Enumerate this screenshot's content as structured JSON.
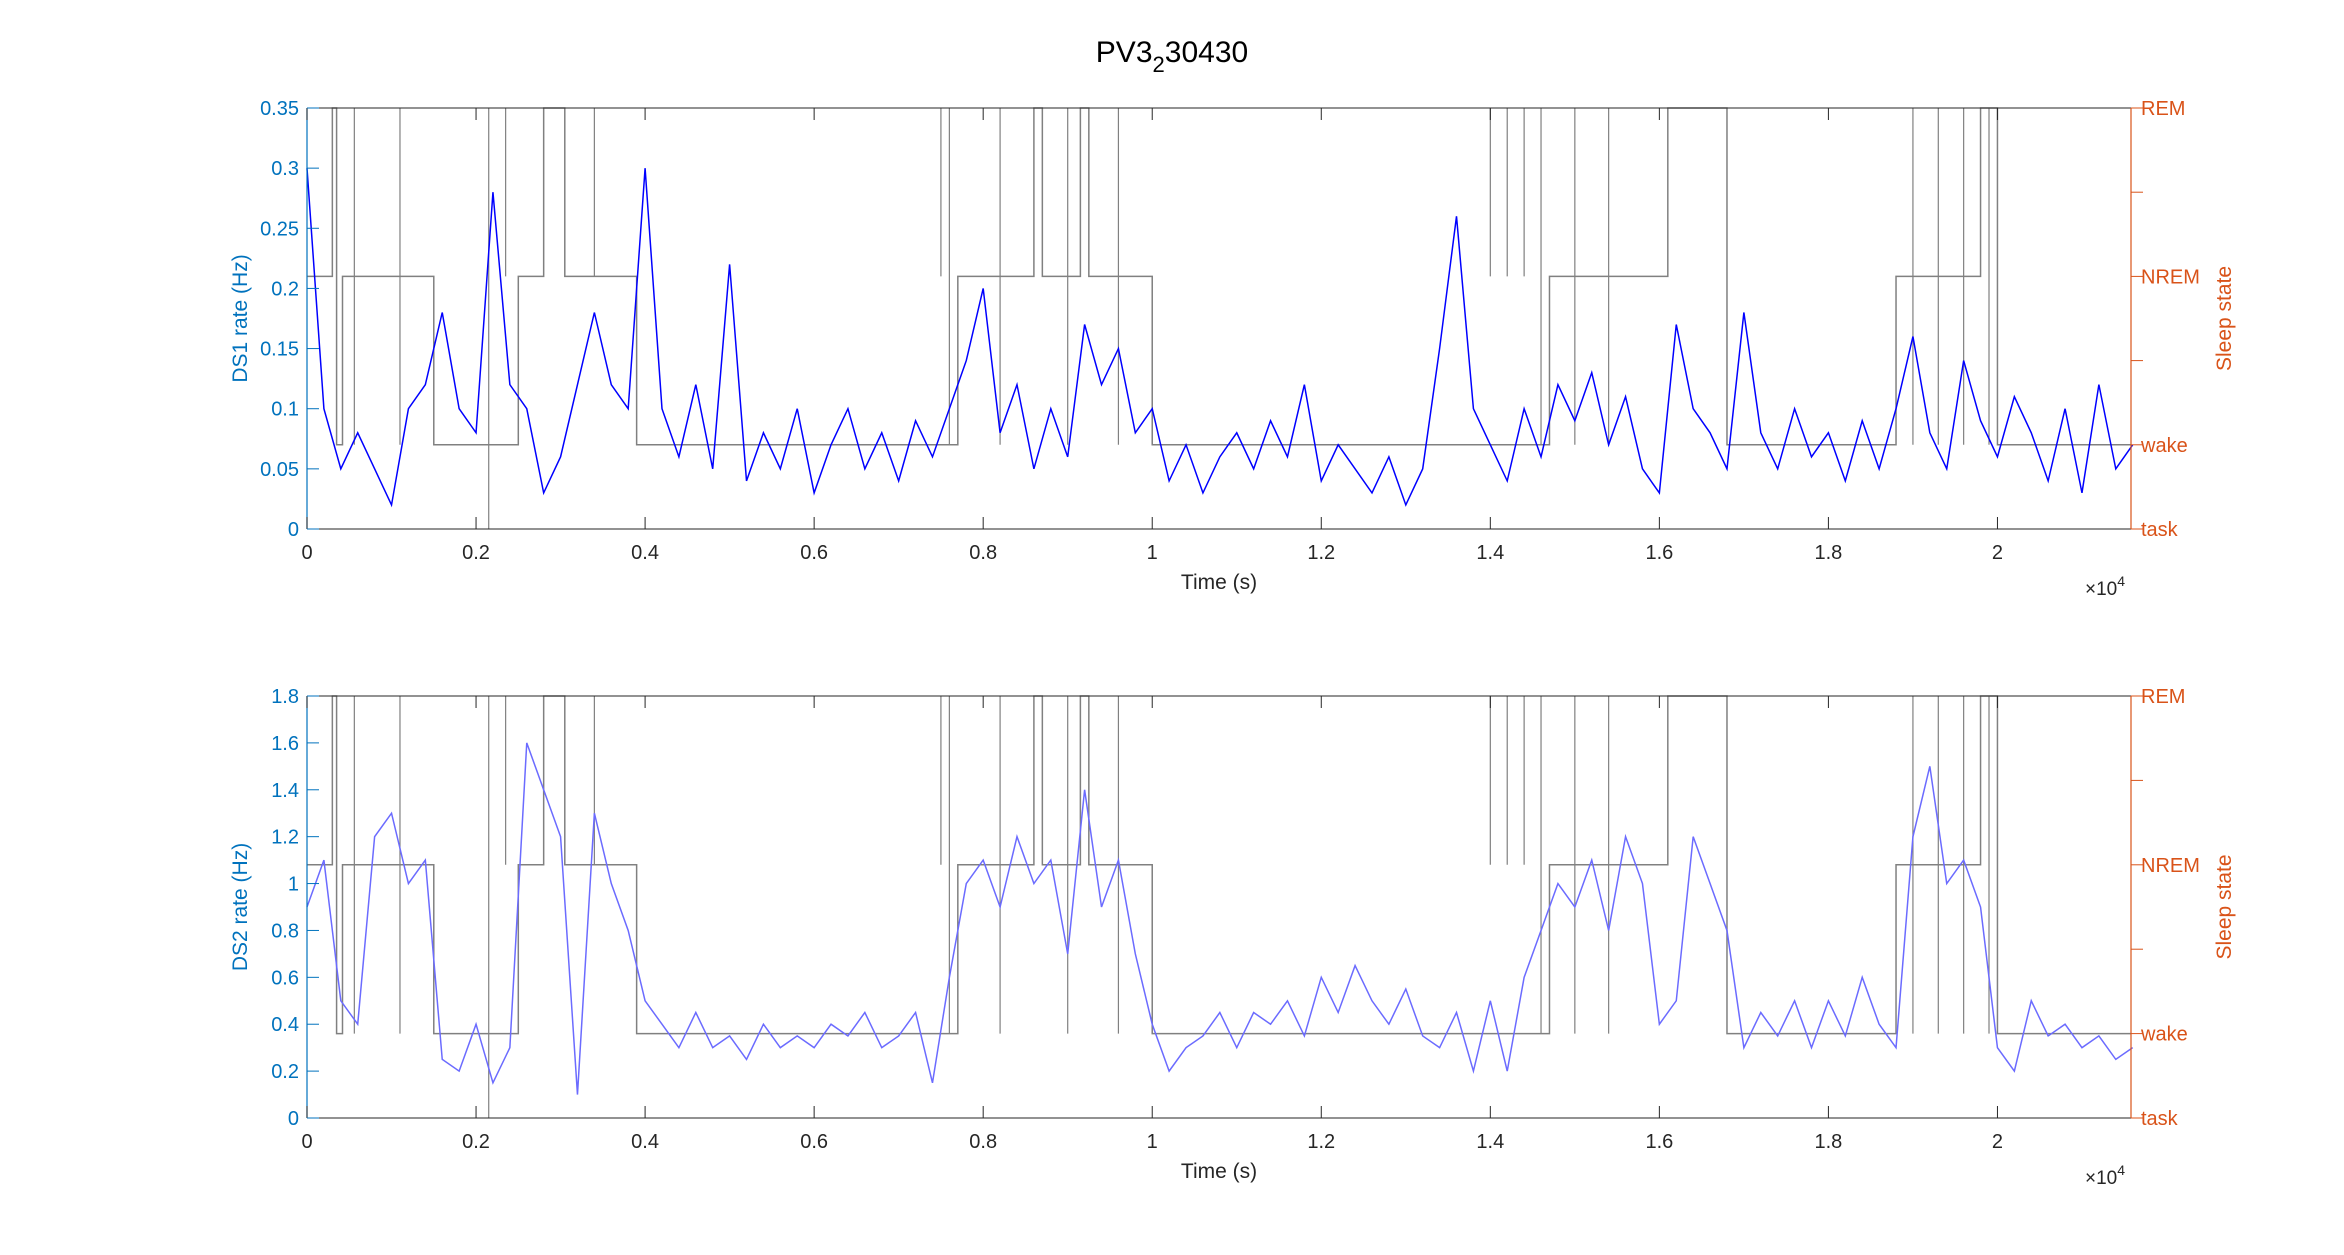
{
  "title": {
    "base": "PV3",
    "sub": "2",
    "rest": "30430"
  },
  "colors": {
    "left_axis": "#0072BD",
    "right_axis": "#D95319",
    "ds1_line": "#0000FF",
    "ds2_line": "#6B6BFF",
    "hypnogram": "#808080",
    "axis": "#262626"
  },
  "chart_data": [
    {
      "type": "line",
      "title": "PV3_2 30430",
      "xlabel": "Time (s)",
      "x_exponent_label": "×10",
      "x_exponent": "4",
      "ylabel": "DS1 rate (Hz)",
      "ylabel_right": "Sleep state",
      "xlim": [
        0,
        21580
      ],
      "ylim": [
        0,
        0.35
      ],
      "xticks": [
        0,
        2000,
        4000,
        6000,
        8000,
        10000,
        12000,
        14000,
        16000,
        18000,
        20000
      ],
      "xtick_labels": [
        "0",
        "0.2",
        "0.4",
        "0.6",
        "0.8",
        "1",
        "1.2",
        "1.4",
        "1.6",
        "1.8",
        "2"
      ],
      "yticks": [
        0,
        0.05,
        0.1,
        0.15,
        0.2,
        0.25,
        0.3,
        0.35
      ],
      "ytick_labels": [
        "0",
        "0.05",
        "0.1",
        "0.15",
        "0.2",
        "0.25",
        "0.3",
        "0.35"
      ],
      "right_ticks": [
        0,
        1,
        2,
        3,
        4,
        5
      ],
      "right_tick_labels": [
        "task",
        "wake",
        "",
        "NREM",
        "",
        "REM"
      ],
      "x_step": 200,
      "series": [
        {
          "name": "DS1 rate",
          "values": [
            0.3,
            0.1,
            0.05,
            0.08,
            0.05,
            0.02,
            0.1,
            0.12,
            0.18,
            0.1,
            0.08,
            0.28,
            0.12,
            0.1,
            0.03,
            0.06,
            0.12,
            0.18,
            0.12,
            0.1,
            0.3,
            0.1,
            0.06,
            0.12,
            0.05,
            0.22,
            0.04,
            0.08,
            0.05,
            0.1,
            0.03,
            0.07,
            0.1,
            0.05,
            0.08,
            0.04,
            0.09,
            0.06,
            0.1,
            0.14,
            0.2,
            0.08,
            0.12,
            0.05,
            0.1,
            0.06,
            0.17,
            0.12,
            0.15,
            0.08,
            0.1,
            0.04,
            0.07,
            0.03,
            0.06,
            0.08,
            0.05,
            0.09,
            0.06,
            0.12,
            0.04,
            0.07,
            0.05,
            0.03,
            0.06,
            0.02,
            0.05,
            0.15,
            0.26,
            0.1,
            0.07,
            0.04,
            0.1,
            0.06,
            0.12,
            0.09,
            0.13,
            0.07,
            0.11,
            0.05,
            0.03,
            0.17,
            0.1,
            0.08,
            0.05,
            0.18,
            0.08,
            0.05,
            0.1,
            0.06,
            0.08,
            0.04,
            0.09,
            0.05,
            0.1,
            0.16,
            0.08,
            0.05,
            0.14,
            0.09,
            0.06,
            0.11,
            0.08,
            0.04,
            0.1,
            0.03,
            0.12,
            0.05,
            0.07
          ]
        }
      ]
    },
    {
      "type": "line",
      "xlabel": "Time (s)",
      "x_exponent_label": "×10",
      "x_exponent": "4",
      "ylabel": "DS2 rate (Hz)",
      "ylabel_right": "Sleep state",
      "xlim": [
        0,
        21580
      ],
      "ylim": [
        0,
        1.8
      ],
      "xticks": [
        0,
        2000,
        4000,
        6000,
        8000,
        10000,
        12000,
        14000,
        16000,
        18000,
        20000
      ],
      "xtick_labels": [
        "0",
        "0.2",
        "0.4",
        "0.6",
        "0.8",
        "1",
        "1.2",
        "1.4",
        "1.6",
        "1.8",
        "2"
      ],
      "yticks": [
        0,
        0.2,
        0.4,
        0.6,
        0.8,
        1,
        1.2,
        1.4,
        1.6,
        1.8
      ],
      "ytick_labels": [
        "0",
        "0.2",
        "0.4",
        "0.6",
        "0.8",
        "1",
        "1.2",
        "1.4",
        "1.6",
        "1.8"
      ],
      "right_ticks": [
        0,
        1,
        2,
        3,
        4,
        5
      ],
      "right_tick_labels": [
        "task",
        "wake",
        "",
        "NREM",
        "",
        "REM"
      ],
      "x_step": 200,
      "series": [
        {
          "name": "DS2 rate",
          "values": [
            0.9,
            1.1,
            0.5,
            0.4,
            1.2,
            1.3,
            1.0,
            1.1,
            0.25,
            0.2,
            0.4,
            0.15,
            0.3,
            1.6,
            1.4,
            1.2,
            0.1,
            1.3,
            1.0,
            0.8,
            0.5,
            0.4,
            0.3,
            0.45,
            0.3,
            0.35,
            0.25,
            0.4,
            0.3,
            0.35,
            0.3,
            0.4,
            0.35,
            0.45,
            0.3,
            0.35,
            0.45,
            0.15,
            0.6,
            1.0,
            1.1,
            0.9,
            1.2,
            1.0,
            1.1,
            0.7,
            1.4,
            0.9,
            1.1,
            0.7,
            0.4,
            0.2,
            0.3,
            0.35,
            0.45,
            0.3,
            0.45,
            0.4,
            0.5,
            0.35,
            0.6,
            0.45,
            0.65,
            0.5,
            0.4,
            0.55,
            0.35,
            0.3,
            0.45,
            0.2,
            0.5,
            0.2,
            0.6,
            0.8,
            1.0,
            0.9,
            1.1,
            0.8,
            1.2,
            1.0,
            0.4,
            0.5,
            1.2,
            1.0,
            0.8,
            0.3,
            0.45,
            0.35,
            0.5,
            0.3,
            0.5,
            0.35,
            0.6,
            0.4,
            0.3,
            1.2,
            1.5,
            1.0,
            1.1,
            0.9,
            0.3,
            0.2,
            0.5,
            0.35,
            0.4,
            0.3,
            0.35,
            0.25,
            0.3
          ]
        }
      ]
    }
  ],
  "hypnogram": {
    "name": "Sleep state",
    "segments": [
      [
        0,
        300,
        3
      ],
      [
        300,
        350,
        5
      ],
      [
        350,
        420,
        1
      ],
      [
        420,
        1500,
        3
      ],
      [
        1500,
        2500,
        1
      ],
      [
        2500,
        2800,
        3
      ],
      [
        2800,
        3050,
        5
      ],
      [
        3050,
        3900,
        3
      ],
      [
        3900,
        7700,
        1
      ],
      [
        7700,
        8600,
        3
      ],
      [
        8600,
        8700,
        5
      ],
      [
        8700,
        9150,
        3
      ],
      [
        9150,
        9250,
        5
      ],
      [
        9250,
        10000,
        3
      ],
      [
        10000,
        13300,
        1
      ],
      [
        13300,
        14700,
        1
      ],
      [
        14700,
        16100,
        3
      ],
      [
        16100,
        16800,
        5
      ],
      [
        16800,
        18800,
        1
      ],
      [
        18800,
        19800,
        3
      ],
      [
        19800,
        20000,
        5
      ],
      [
        20000,
        21580,
        1
      ]
    ],
    "flickers": [
      [
        400,
        5
      ],
      [
        560,
        1
      ],
      [
        1100,
        1
      ],
      [
        2150,
        0
      ],
      [
        2350,
        3
      ],
      [
        3400,
        3
      ],
      [
        7500,
        3
      ],
      [
        7600,
        1
      ],
      [
        8200,
        1
      ],
      [
        9000,
        1
      ],
      [
        9600,
        1
      ],
      [
        14000,
        3
      ],
      [
        14200,
        3
      ],
      [
        14400,
        3
      ],
      [
        14600,
        1
      ],
      [
        15000,
        1
      ],
      [
        15400,
        1
      ],
      [
        19000,
        1
      ],
      [
        19300,
        1
      ],
      [
        19600,
        1
      ],
      [
        19900,
        1
      ]
    ]
  }
}
